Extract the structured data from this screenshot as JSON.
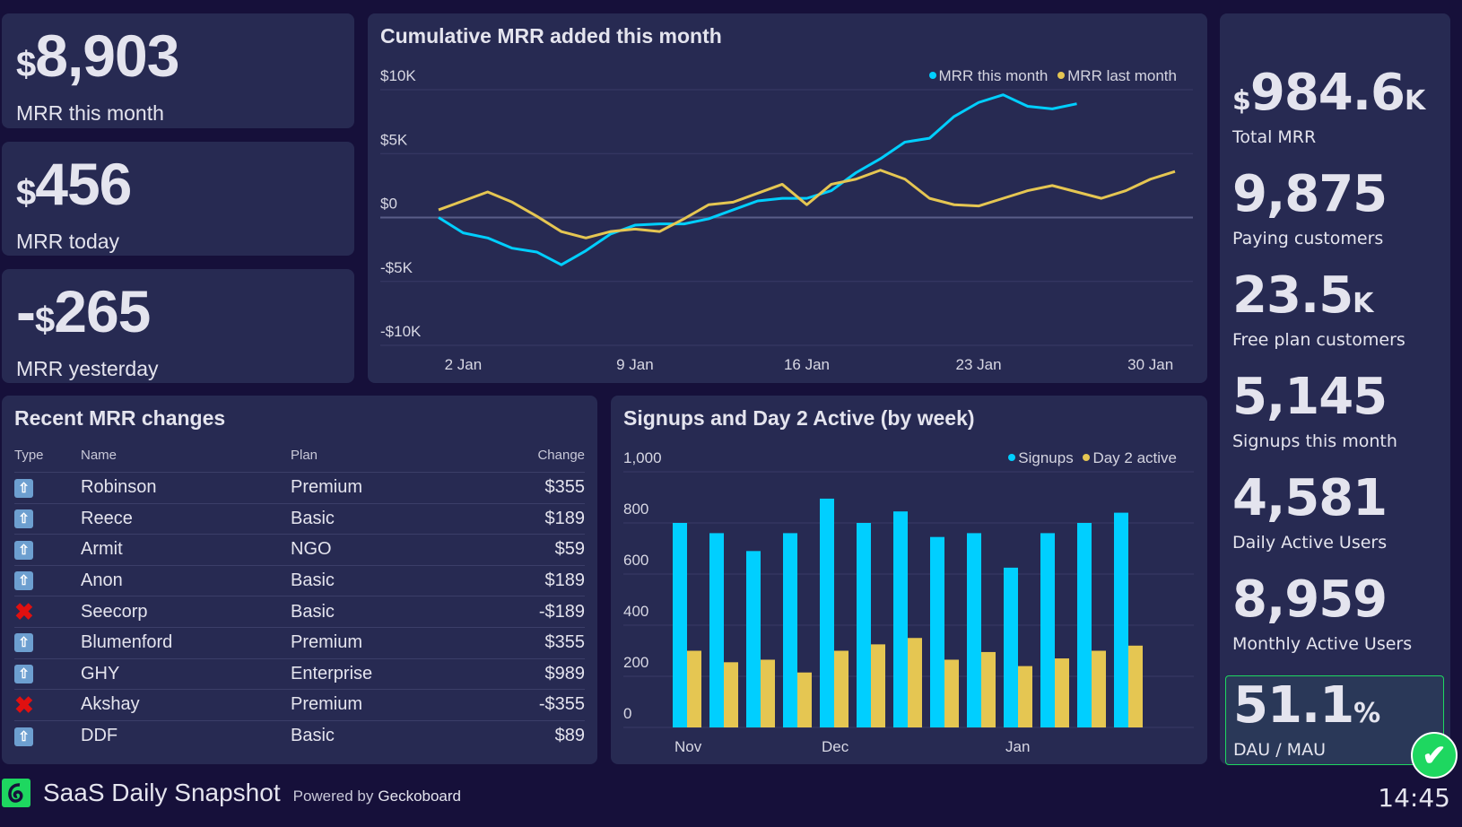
{
  "kpis": [
    {
      "prefix": "",
      "currency": "$",
      "value": "8,903",
      "label": "MRR this month"
    },
    {
      "prefix": "",
      "currency": "$",
      "value": "456",
      "label": "MRR today"
    },
    {
      "prefix": "-",
      "currency": "$",
      "value": "265",
      "label": "MRR yesterday"
    }
  ],
  "line_chart": {
    "title": "Cumulative MRR added this month"
  },
  "table": {
    "title": "Recent MRR changes",
    "headers": [
      "Type",
      "Name",
      "Plan",
      "Change"
    ],
    "rows": [
      {
        "type": "upgrade",
        "name": "Robinson",
        "plan": "Premium",
        "change": "$355"
      },
      {
        "type": "upgrade",
        "name": "Reece",
        "plan": "Basic",
        "change": "$189"
      },
      {
        "type": "upgrade",
        "name": "Armit",
        "plan": "NGO",
        "change": "$59"
      },
      {
        "type": "upgrade",
        "name": "Anon",
        "plan": "Basic",
        "change": "$189"
      },
      {
        "type": "cancel",
        "name": "Seecorp",
        "plan": "Basic",
        "change": "-$189"
      },
      {
        "type": "upgrade",
        "name": "Blumenford",
        "plan": "Premium",
        "change": "$355"
      },
      {
        "type": "upgrade",
        "name": "GHY",
        "plan": "Enterprise",
        "change": "$989"
      },
      {
        "type": "cancel",
        "name": "Akshay",
        "plan": "Premium",
        "change": "-$355"
      },
      {
        "type": "upgrade",
        "name": "DDF",
        "plan": "Basic",
        "change": "$89"
      }
    ]
  },
  "bar_chart": {
    "title": "Signups and Day 2 Active (by week)"
  },
  "stats": [
    {
      "pre": "$",
      "value": "984.6",
      "suf": "K",
      "label": "Total MRR"
    },
    {
      "pre": "",
      "value": "9,875",
      "suf": "",
      "label": "Paying customers"
    },
    {
      "pre": "",
      "value": "23.5",
      "suf": "K",
      "label": "Free plan customers"
    },
    {
      "pre": "",
      "value": "5,145",
      "suf": "",
      "label": "Signups this month"
    },
    {
      "pre": "",
      "value": "4,581",
      "suf": "",
      "label": "Daily Active Users"
    },
    {
      "pre": "",
      "value": "8,959",
      "suf": "",
      "label": "Monthly Active Users"
    },
    {
      "pre": "",
      "value": "51.1",
      "suf": "%",
      "label": "DAU / MAU",
      "status": "ok"
    }
  ],
  "footer": {
    "title": "SaaS Daily Snapshot",
    "powered_prefix": "Powered by",
    "powered_brand": "Geckoboard",
    "time": "14:45"
  },
  "colors": {
    "cyan": "#00cfff",
    "yellow": "#e5c652",
    "bg": "#16103a",
    "card": "#272a52",
    "ok": "#1ed760"
  },
  "chart_data": [
    {
      "type": "line",
      "title": "Cumulative MRR added this month",
      "ylim": [
        -10000,
        10000
      ],
      "yticks": [
        10000,
        5000,
        0,
        -5000,
        -10000
      ],
      "ytick_labels": [
        "$10K",
        "$5K",
        "$0",
        "-$5K",
        "-$10K"
      ],
      "xticks": [
        2,
        9,
        16,
        23,
        30
      ],
      "xtick_labels": [
        "2 Jan",
        "9 Jan",
        "16 Jan",
        "23 Jan",
        "30 Jan"
      ],
      "xlim": [
        1,
        31
      ],
      "grid": true,
      "legend": "top-right",
      "series": [
        {
          "name": "MRR this month",
          "color": "#00cfff",
          "x": [
            1,
            2,
            3,
            4,
            5,
            6,
            7,
            8,
            9,
            10,
            11,
            12,
            13,
            14,
            15,
            16,
            17,
            18,
            19,
            20,
            21,
            22,
            23,
            24,
            25,
            26,
            27
          ],
          "y": [
            0,
            -1200,
            -1600,
            -2400,
            -2700,
            -3700,
            -2600,
            -1300,
            -600,
            -500,
            -500,
            -100,
            600,
            1300,
            1500,
            1500,
            2100,
            3500,
            4600,
            5900,
            6200,
            7900,
            9000,
            9600,
            8700,
            8500,
            8900
          ]
        },
        {
          "name": "MRR last month",
          "color": "#e5c652",
          "x": [
            1,
            2,
            3,
            4,
            5,
            6,
            7,
            8,
            9,
            10,
            11,
            12,
            13,
            14,
            15,
            16,
            17,
            18,
            19,
            20,
            21,
            22,
            23,
            24,
            25,
            26,
            27,
            28,
            29,
            30,
            31
          ],
          "y": [
            600,
            1300,
            2000,
            1200,
            100,
            -1100,
            -1600,
            -1100,
            -900,
            -1100,
            -100,
            1000,
            1200,
            1900,
            2600,
            1000,
            2600,
            3000,
            3700,
            3000,
            1500,
            1000,
            900,
            1500,
            2100,
            2500,
            2000,
            1500,
            2100,
            3000,
            3600
          ]
        }
      ]
    },
    {
      "type": "bar",
      "title": "Signups and Day 2 Active (by week)",
      "ylim": [
        0,
        1000
      ],
      "yticks": [
        0,
        200,
        400,
        600,
        800,
        1000
      ],
      "ytick_labels": [
        "0",
        "200",
        "400",
        "600",
        "800",
        "1,000"
      ],
      "xtick_labels": [
        {
          "label": "Nov",
          "index": 0
        },
        {
          "label": "Dec",
          "index": 4
        },
        {
          "label": "Jan",
          "index": 9
        }
      ],
      "grid": true,
      "legend": "top-right",
      "series": [
        {
          "name": "Signups",
          "color": "#00cfff",
          "values": [
            800,
            760,
            690,
            760,
            895,
            800,
            845,
            745,
            760,
            625,
            760,
            800,
            840
          ]
        },
        {
          "name": "Day 2 active",
          "color": "#e5c652",
          "values": [
            300,
            255,
            265,
            215,
            300,
            325,
            350,
            265,
            295,
            240,
            270,
            300,
            320
          ]
        }
      ]
    }
  ]
}
